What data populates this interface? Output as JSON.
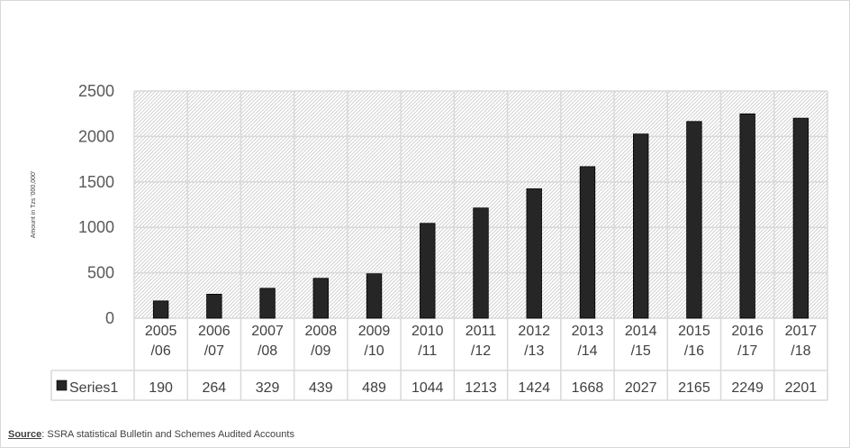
{
  "chart_data": {
    "type": "bar",
    "title": "",
    "xlabel": "",
    "ylabel": "Amount in Tzs '000,000'",
    "ylim": [
      0,
      2500
    ],
    "y_ticks": [
      0,
      500,
      1000,
      1500,
      2000,
      2500
    ],
    "grid": true,
    "legend_position": "bottom-left data table",
    "categories": [
      [
        "2005",
        "/06"
      ],
      [
        "2006",
        "/07"
      ],
      [
        "2007",
        "/08"
      ],
      [
        "2008",
        "/09"
      ],
      [
        "2009",
        "/10"
      ],
      [
        "2010",
        "/11"
      ],
      [
        "2011",
        "/12"
      ],
      [
        "2012",
        "/13"
      ],
      [
        "2013",
        "/14"
      ],
      [
        "2014",
        "/15"
      ],
      [
        "2015",
        "/16"
      ],
      [
        "2016",
        "/17"
      ],
      [
        "2017",
        "/18"
      ]
    ],
    "series": [
      {
        "name": "Series1",
        "values": [
          190,
          264,
          329,
          439,
          489,
          1044,
          1213,
          1424,
          1668,
          2027,
          2165,
          2249,
          2201
        ],
        "value_labels": [
          "190",
          "264",
          "329",
          "439",
          "489",
          "1044",
          "1213",
          "1424",
          "1668",
          "2027",
          "2165",
          "2249",
          "2201"
        ],
        "color": "#262626"
      }
    ]
  },
  "source": {
    "label": "Source",
    "text": ": SSRA statistical Bulletin and Schemes Audited Accounts"
  },
  "colors": {
    "bar": "#262626",
    "grid": "#d9d9d9",
    "plot_hatch": "#cfcfcf"
  }
}
